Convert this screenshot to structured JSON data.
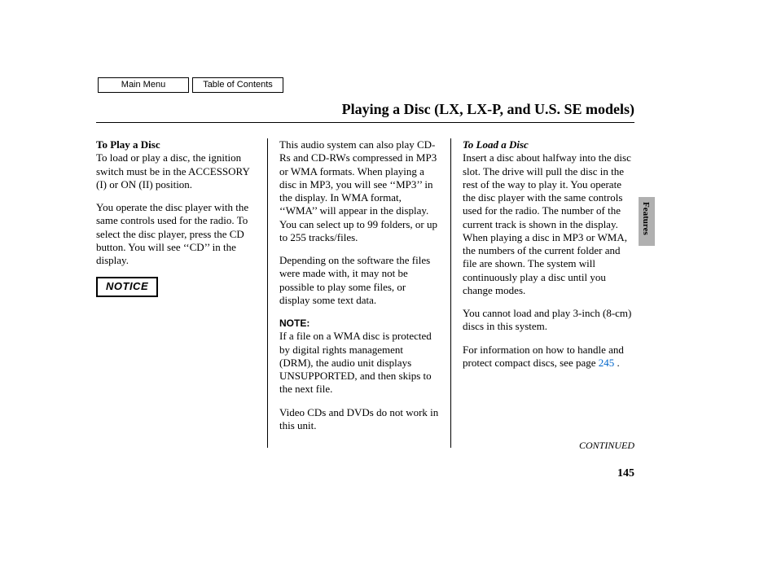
{
  "nav": {
    "main_menu": "Main Menu",
    "toc": "Table of Contents"
  },
  "title": "Playing a Disc (LX, LX-P, and U.S. SE models)",
  "col1": {
    "heading": "To Play a Disc",
    "p1": "To load or play a disc, the ignition switch must be in the ACCESSORY (I) or ON (II) position.",
    "p2": "You operate the disc player with the same controls used for the radio. To select the disc player, press the CD button. You will see ‘‘CD’’ in the display.",
    "notice": "NOTICE"
  },
  "col2": {
    "p1": "This audio system can also play CD-Rs and CD-RWs compressed in MP3 or WMA formats. When playing a disc in MP3, you will see ‘‘MP3’’ in the display. In WMA format, ‘‘WMA’’ will appear in the display. You can select up to 99 folders, or up to 255 tracks/files.",
    "p2": "Depending on the software the files were made with, it may not be possible to play some files, or display some text data.",
    "note_label": "NOTE:",
    "p3": "If a file on a WMA disc is protected by digital rights management (DRM), the audio unit displays UNSUPPORTED, and then skips to the next file.",
    "p4": "Video CDs and DVDs do not work in this unit."
  },
  "col3": {
    "heading": "To Load a Disc",
    "p1": "Insert a disc about halfway into the disc slot. The drive will pull the disc in the rest of the way to play it. You operate the disc player with the same controls used for the radio. The number of the current track is shown in the display. When playing a disc in MP3 or WMA, the numbers of the current folder and file are shown. The system will continuously play a disc until you change modes.",
    "p2": "You cannot load and play 3-inch (8-cm) discs in this system.",
    "p3a": "For information on how to handle and protect compact discs, see page ",
    "p3_link": "245",
    "p3b": " ."
  },
  "side_label": "Features",
  "continued": "CONTINUED",
  "page_number": "145",
  "colors": {
    "link": "#0066cc",
    "tab_bg": "#b0b0b0",
    "text": "#000000",
    "bg": "#ffffff"
  }
}
